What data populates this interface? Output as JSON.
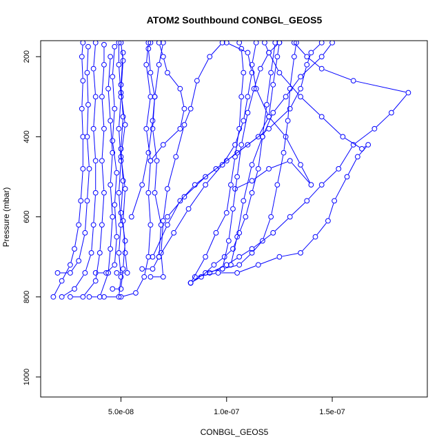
{
  "chart_data": {
    "type": "line",
    "title": "ATOM2 Southbound CONBGL_GEOS5",
    "xlabel": "CONBGL_GEOS5",
    "ylabel": "Pressure (mbar)",
    "xlim": [
      1.2e-08,
      1.95e-07
    ],
    "ylim": [
      1050,
      160
    ],
    "y_inverted": true,
    "grid": false,
    "x_ticks": [
      {
        "value": 5e-08,
        "label": "5.0e-08"
      },
      {
        "value": 1e-07,
        "label": "1.0e-07"
      },
      {
        "value": 1.5e-07,
        "label": "1.5e-07"
      }
    ],
    "y_ticks": [
      {
        "value": 200,
        "label": "200"
      },
      {
        "value": 400,
        "label": "400"
      },
      {
        "value": 600,
        "label": "600"
      },
      {
        "value": 800,
        "label": "800"
      },
      {
        "value": 1000,
        "label": "1000"
      }
    ],
    "marker": "open-circle",
    "colors": {
      "series": "#0000ff",
      "axis": "#000000"
    },
    "series": [
      {
        "points": [
          [
            1.8e-08,
            800
          ],
          [
            2.2e-08,
            760
          ],
          [
            2.6e-08,
            720
          ],
          [
            2.8e-08,
            680
          ],
          [
            3e-08,
            620
          ],
          [
            3.1e-08,
            560
          ],
          [
            3.2e-08,
            480
          ],
          [
            3.2e-08,
            400
          ],
          [
            3.15e-08,
            330
          ],
          [
            3.2e-08,
            260
          ],
          [
            3.15e-08,
            200
          ],
          [
            3.2e-08,
            165
          ]
        ]
      },
      {
        "points": [
          [
            2e-08,
            740
          ],
          [
            2.6e-08,
            740
          ],
          [
            3e-08,
            710
          ],
          [
            3.3e-08,
            640
          ],
          [
            3.4e-08,
            560
          ],
          [
            3.5e-08,
            480
          ],
          [
            3.4e-08,
            400
          ],
          [
            3.45e-08,
            320
          ],
          [
            3.4e-08,
            240
          ],
          [
            3.45e-08,
            175
          ]
        ]
      },
      {
        "points": [
          [
            2.2e-08,
            800
          ],
          [
            2.8e-08,
            780
          ],
          [
            3.3e-08,
            740
          ],
          [
            3.6e-08,
            690
          ],
          [
            3.7e-08,
            620
          ],
          [
            3.8e-08,
            540
          ],
          [
            3.8e-08,
            460
          ],
          [
            3.7e-08,
            380
          ],
          [
            3.8e-08,
            300
          ],
          [
            3.7e-08,
            230
          ],
          [
            3.8e-08,
            165
          ]
        ]
      },
      {
        "points": [
          [
            2.6e-08,
            800
          ],
          [
            3.2e-08,
            800
          ],
          [
            3.8e-08,
            760
          ],
          [
            4e-08,
            690
          ],
          [
            4.1e-08,
            620
          ],
          [
            4.2e-08,
            540
          ],
          [
            4.1e-08,
            460
          ],
          [
            4.2e-08,
            380
          ],
          [
            4.1e-08,
            300
          ],
          [
            4.2e-08,
            220
          ],
          [
            4.2e-08,
            170
          ]
        ]
      },
      {
        "points": [
          [
            3.5e-08,
            800
          ],
          [
            4e-08,
            800
          ],
          [
            4.4e-08,
            740
          ],
          [
            4.5e-08,
            680
          ],
          [
            4.6e-08,
            600
          ],
          [
            4.5e-08,
            520
          ],
          [
            4.6e-08,
            440
          ],
          [
            4.5e-08,
            360
          ],
          [
            4.4e-08,
            280
          ],
          [
            4.5e-08,
            200
          ]
        ]
      },
      {
        "points": [
          [
            3.8e-08,
            740
          ],
          [
            4.3e-08,
            740
          ],
          [
            4.7e-08,
            720
          ],
          [
            4.8e-08,
            650
          ],
          [
            4.7e-08,
            570
          ],
          [
            4.8e-08,
            490
          ],
          [
            4.6e-08,
            410
          ],
          [
            4.7e-08,
            330
          ],
          [
            4.6e-08,
            250
          ],
          [
            4.7e-08,
            175
          ]
        ]
      },
      {
        "points": [
          [
            4.2e-08,
            800
          ],
          [
            4.9e-08,
            800
          ],
          [
            5e-08,
            750
          ],
          [
            4.9e-08,
            690
          ],
          [
            5e-08,
            620
          ],
          [
            4.9e-08,
            540
          ],
          [
            5e-08,
            460
          ],
          [
            4.9e-08,
            380
          ],
          [
            5e-08,
            300
          ],
          [
            4.9e-08,
            220
          ],
          [
            4.9e-08,
            165
          ]
        ]
      },
      {
        "points": [
          [
            4.6e-08,
            780
          ],
          [
            5e-08,
            780
          ],
          [
            5.1e-08,
            730
          ],
          [
            5.2e-08,
            660
          ],
          [
            5e-08,
            590
          ],
          [
            5.1e-08,
            510
          ],
          [
            5e-08,
            430
          ],
          [
            5.1e-08,
            350
          ],
          [
            5e-08,
            270
          ],
          [
            5.1e-08,
            190
          ]
        ]
      },
      {
        "points": [
          [
            4.8e-08,
            740
          ],
          [
            5.3e-08,
            740
          ],
          [
            5.2e-08,
            690
          ],
          [
            5.1e-08,
            610
          ],
          [
            5.2e-08,
            530
          ],
          [
            5e-08,
            450
          ],
          [
            5.2e-08,
            370
          ],
          [
            5e-08,
            290
          ],
          [
            5.1e-08,
            210
          ],
          [
            5e-08,
            165
          ]
        ]
      },
      {
        "points": [
          [
            5e-08,
            800
          ],
          [
            5.7e-08,
            790
          ],
          [
            6.1e-08,
            750
          ],
          [
            6.3e-08,
            700
          ],
          [
            6.4e-08,
            620
          ],
          [
            6.3e-08,
            540
          ],
          [
            6.4e-08,
            460
          ],
          [
            6.2e-08,
            380
          ],
          [
            6.4e-08,
            300
          ],
          [
            6.2e-08,
            220
          ],
          [
            6.3e-08,
            165
          ]
        ]
      },
      {
        "points": [
          [
            6e-08,
            730
          ],
          [
            6.5e-08,
            730
          ],
          [
            6.8e-08,
            700
          ],
          [
            6.9e-08,
            620
          ],
          [
            6.6e-08,
            540
          ],
          [
            6.7e-08,
            460
          ],
          [
            6.5e-08,
            380
          ],
          [
            6.6e-08,
            300
          ],
          [
            6.8e-08,
            220
          ],
          [
            7e-08,
            165
          ]
        ]
      },
      {
        "points": [
          [
            6.4e-08,
            750
          ],
          [
            7e-08,
            750
          ],
          [
            6.9e-08,
            690
          ],
          [
            7e-08,
            610
          ],
          [
            7.2e-08,
            530
          ],
          [
            7.6e-08,
            450
          ],
          [
            8e-08,
            370
          ],
          [
            8.3e-08,
            330
          ],
          [
            8.6e-08,
            260
          ],
          [
            9.2e-08,
            200
          ],
          [
            9.8e-08,
            165
          ]
        ]
      },
      {
        "points": [
          [
            6.5e-08,
            700
          ],
          [
            7.2e-08,
            620
          ],
          [
            7.8e-08,
            560
          ],
          [
            8.5e-08,
            520
          ],
          [
            9.5e-08,
            480
          ],
          [
            1.05e-07,
            440
          ],
          [
            1.15e-07,
            400
          ],
          [
            1.2e-07,
            350
          ],
          [
            1.22e-07,
            270
          ],
          [
            1.24e-07,
            200
          ],
          [
            1.25e-07,
            165
          ]
        ]
      },
      {
        "points": [
          [
            8.3e-08,
            765
          ],
          [
            8.8e-08,
            750
          ],
          [
            9.4e-08,
            720
          ],
          [
            9.9e-08,
            700
          ],
          [
            1.03e-07,
            680
          ],
          [
            1.06e-07,
            640
          ],
          [
            1.09e-07,
            600
          ],
          [
            1.12e-07,
            540
          ],
          [
            1.15e-07,
            480
          ],
          [
            1.17e-07,
            400
          ],
          [
            1.19e-07,
            320
          ],
          [
            1.21e-07,
            240
          ],
          [
            1.23e-07,
            165
          ]
        ]
      },
      {
        "points": [
          [
            8.3e-08,
            765
          ],
          [
            9e-08,
            740
          ],
          [
            9.8e-08,
            730
          ],
          [
            1.06e-07,
            720
          ],
          [
            1.12e-07,
            690
          ],
          [
            1.17e-07,
            660
          ],
          [
            1.21e-07,
            600
          ],
          [
            1.24e-07,
            520
          ],
          [
            1.27e-07,
            440
          ],
          [
            1.29e-07,
            360
          ],
          [
            1.3e-07,
            280
          ],
          [
            1.32e-07,
            200
          ],
          [
            1.33e-07,
            165
          ]
        ]
      },
      {
        "points": [
          [
            8.5e-08,
            750
          ],
          [
            9.6e-08,
            740
          ],
          [
            1.05e-07,
            740
          ],
          [
            1.15e-07,
            720
          ],
          [
            1.25e-07,
            700
          ],
          [
            1.35e-07,
            690
          ],
          [
            1.42e-07,
            650
          ],
          [
            1.48e-07,
            610
          ],
          [
            1.51e-07,
            560
          ],
          [
            1.57e-07,
            500
          ],
          [
            1.62e-07,
            450
          ],
          [
            1.67e-07,
            420
          ],
          [
            1.64e-07,
            430
          ],
          [
            1.55e-07,
            400
          ],
          [
            1.45e-07,
            350
          ],
          [
            1.35e-07,
            300
          ],
          [
            1.25e-07,
            240
          ],
          [
            1.2e-07,
            190
          ],
          [
            1.18e-07,
            165
          ]
        ]
      },
      {
        "points": [
          [
            9.2e-08,
            740
          ],
          [
            1e-07,
            720
          ],
          [
            1.06e-07,
            700
          ],
          [
            1.12e-07,
            680
          ],
          [
            1.22e-07,
            640
          ],
          [
            1.3e-07,
            600
          ],
          [
            1.38e-07,
            560
          ],
          [
            1.45e-07,
            520
          ],
          [
            1.53e-07,
            480
          ],
          [
            1.6e-07,
            420
          ],
          [
            1.7e-07,
            380
          ],
          [
            1.78e-07,
            340
          ],
          [
            1.86e-07,
            290
          ],
          [
            1.6e-07,
            260
          ],
          [
            1.45e-07,
            230
          ],
          [
            1.38e-07,
            200
          ],
          [
            1.32e-07,
            165
          ]
        ]
      },
      {
        "points": [
          [
            8.3e-08,
            765
          ],
          [
            9e-08,
            700
          ],
          [
            9.5e-08,
            640
          ],
          [
            1e-07,
            590
          ],
          [
            1.02e-07,
            520
          ],
          [
            1.04e-07,
            450
          ],
          [
            1.06e-07,
            380
          ],
          [
            1.07e-07,
            300
          ],
          [
            1.08e-07,
            240
          ],
          [
            1.07e-07,
            180
          ],
          [
            1.06e-07,
            165
          ]
        ]
      },
      {
        "points": [
          [
            9.8e-08,
            730
          ],
          [
            1.01e-07,
            660
          ],
          [
            1.03e-07,
            580
          ],
          [
            1.05e-07,
            500
          ],
          [
            1.07e-07,
            420
          ],
          [
            1.1e-07,
            340
          ],
          [
            1.13e-07,
            280
          ],
          [
            1.16e-07,
            230
          ],
          [
            1.2e-07,
            190
          ],
          [
            1.25e-07,
            165
          ]
        ]
      },
      {
        "points": [
          [
            1.02e-07,
            720
          ],
          [
            1.05e-07,
            650
          ],
          [
            1.08e-07,
            560
          ],
          [
            1.12e-07,
            470
          ],
          [
            1.17e-07,
            400
          ],
          [
            1.22e-07,
            340
          ],
          [
            1.28e-07,
            300
          ],
          [
            1.35e-07,
            250
          ],
          [
            1.45e-07,
            200
          ],
          [
            1.5e-07,
            165
          ]
        ]
      },
      {
        "points": [
          [
            7.2e-08,
            600
          ],
          [
            8e-08,
            550
          ],
          [
            9e-08,
            500
          ],
          [
            1e-07,
            460
          ],
          [
            1.1e-07,
            420
          ],
          [
            1.2e-07,
            380
          ],
          [
            1.3e-07,
            330
          ],
          [
            1.35e-07,
            280
          ],
          [
            1.38e-07,
            220
          ],
          [
            1.4e-07,
            190
          ],
          [
            1.45e-07,
            165
          ]
        ]
      },
      {
        "points": [
          [
            1.04e-07,
            530
          ],
          [
            1.12e-07,
            510
          ],
          [
            1.2e-07,
            480
          ],
          [
            1.3e-07,
            460
          ],
          [
            1.4e-07,
            520
          ],
          [
            1.35e-07,
            470
          ],
          [
            1.28e-07,
            400
          ],
          [
            1.2e-07,
            350
          ],
          [
            1.14e-07,
            280
          ],
          [
            1.12e-07,
            220
          ],
          [
            1.14e-07,
            165
          ]
        ]
      },
      {
        "points": [
          [
            6.8e-08,
            700
          ],
          [
            7.5e-08,
            640
          ],
          [
            8.2e-08,
            580
          ],
          [
            9e-08,
            520
          ],
          [
            9.8e-08,
            470
          ],
          [
            1.04e-07,
            420
          ],
          [
            1.08e-07,
            360
          ],
          [
            1.1e-07,
            300
          ],
          [
            1.12e-07,
            240
          ],
          [
            1.1e-07,
            190
          ],
          [
            1e-07,
            165
          ]
        ]
      },
      {
        "points": [
          [
            6.4e-08,
            460
          ],
          [
            7e-08,
            420
          ],
          [
            7.8e-08,
            380
          ],
          [
            8e-08,
            330
          ],
          [
            7.8e-08,
            280
          ],
          [
            7.2e-08,
            240
          ],
          [
            7e-08,
            200
          ],
          [
            6.8e-08,
            165
          ]
        ]
      },
      {
        "points": [
          [
            5.5e-08,
            600
          ],
          [
            6e-08,
            520
          ],
          [
            6.3e-08,
            440
          ],
          [
            6.5e-08,
            360
          ],
          [
            6.6e-08,
            300
          ],
          [
            6.4e-08,
            240
          ],
          [
            6.3e-08,
            180
          ],
          [
            6.4e-08,
            165
          ]
        ]
      }
    ]
  }
}
